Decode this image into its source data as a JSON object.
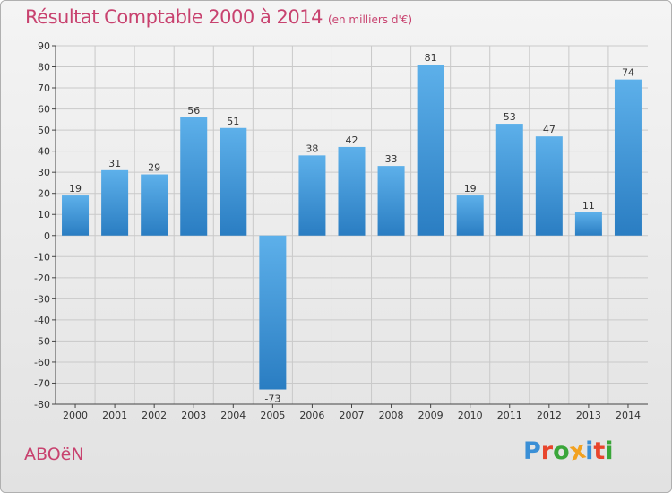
{
  "title": "Résultat Comptable 2000 à 2014",
  "title_unit": "(en milliers d'€)",
  "commune": "ABOëN",
  "logo": {
    "text": "Proxiti",
    "letters": [
      "P",
      "r",
      "o",
      "x",
      "i",
      "t",
      "i"
    ],
    "colors": [
      "#3a8fd6",
      "#e8452c",
      "#3aa63a",
      "#f2a11f",
      "#3a8fd6",
      "#e8452c",
      "#3aa63a"
    ]
  },
  "colors": {
    "accent": "#c8426f",
    "bar_top": "#5db0ea",
    "bar_bottom": "#2a7dc2",
    "grid": "#c9c9c9",
    "axis": "#444444"
  },
  "chart_data": {
    "type": "bar",
    "title": "Résultat Comptable 2000 à 2014",
    "xlabel": "",
    "ylabel": "",
    "categories": [
      "2000",
      "2001",
      "2002",
      "2003",
      "2004",
      "2005",
      "2006",
      "2007",
      "2008",
      "2009",
      "2010",
      "2011",
      "2012",
      "2013",
      "2014"
    ],
    "values": [
      19,
      31,
      29,
      56,
      51,
      -73,
      38,
      42,
      33,
      81,
      19,
      53,
      47,
      11,
      74
    ],
    "ylim": [
      -80,
      90
    ],
    "yticks": [
      90,
      80,
      70,
      60,
      50,
      40,
      30,
      20,
      10,
      0,
      -10,
      -20,
      -30,
      -40,
      -50,
      -60,
      -70,
      -80
    ],
    "grid": true
  }
}
